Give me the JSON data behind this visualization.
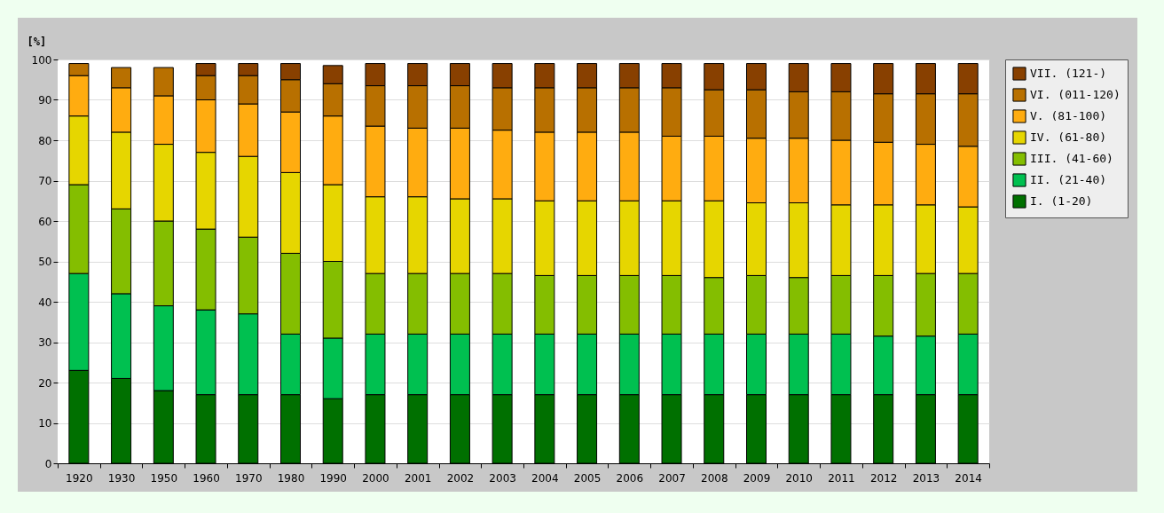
{
  "chart_data": {
    "type": "bar",
    "stacked": true,
    "ylabel": "[%]",
    "categories": [
      "1920",
      "1930",
      "1950",
      "1960",
      "1970",
      "1980",
      "1990",
      "2000",
      "2001",
      "2002",
      "2003",
      "2004",
      "2005",
      "2006",
      "2007",
      "2008",
      "2009",
      "2010",
      "2011",
      "2012",
      "2013",
      "2014"
    ],
    "series": [
      {
        "name": "I. (1-20)",
        "color": "#007000",
        "values": [
          23,
          21,
          18,
          17,
          17,
          17,
          16,
          17,
          17,
          17,
          17,
          17,
          17,
          17,
          17,
          17,
          17,
          17,
          17,
          17,
          17,
          17
        ]
      },
      {
        "name": "II. (21-40)",
        "color": "#00c050",
        "values": [
          24,
          21,
          21,
          21,
          20,
          15,
          15,
          15,
          15,
          15,
          15,
          15,
          15,
          15,
          15,
          15,
          15,
          15,
          15,
          14.5,
          14.5,
          15
        ]
      },
      {
        "name": "III. (41-60)",
        "color": "#84be00",
        "values": [
          22,
          21,
          21,
          20,
          19,
          20,
          19,
          15,
          15,
          15,
          15,
          14.5,
          14.5,
          14.5,
          14.5,
          14,
          14.5,
          14,
          14.5,
          15,
          15.5,
          15
        ]
      },
      {
        "name": "IV. (61-80)",
        "color": "#e6d600",
        "values": [
          17,
          19,
          19,
          19,
          20,
          20,
          19,
          19,
          19,
          18.5,
          18.5,
          18.5,
          18.5,
          18.5,
          18.5,
          19,
          18,
          18.5,
          17.5,
          17.5,
          17,
          16.5
        ]
      },
      {
        "name": "V. (81-100)",
        "color": "#ffac10",
        "values": [
          10,
          11,
          12,
          13,
          13,
          15,
          17,
          17.5,
          17,
          17.5,
          17,
          17,
          17,
          17,
          16,
          16,
          16,
          16,
          16,
          15.5,
          15,
          15
        ]
      },
      {
        "name": "VI. (011-120)",
        "color": "#b87000",
        "values": [
          3,
          5,
          7,
          6,
          7,
          8,
          8,
          10,
          10.5,
          10.5,
          10.5,
          11,
          11,
          11,
          12,
          11.5,
          12,
          11.5,
          12,
          12,
          12.5,
          13
        ]
      },
      {
        "name": "VII. (121-)",
        "color": "#884000",
        "values": [
          null,
          null,
          null,
          3,
          3,
          4,
          4.5,
          5.5,
          5.5,
          5.5,
          6,
          6,
          6,
          6,
          6,
          6.5,
          6.5,
          7,
          7,
          7.5,
          7.5,
          7.5
        ]
      }
    ],
    "ylim": [
      0,
      100
    ],
    "yticks": [
      0,
      10,
      20,
      30,
      40,
      50,
      60,
      70,
      80,
      90,
      100
    ],
    "grid": "y",
    "legend": "right"
  }
}
